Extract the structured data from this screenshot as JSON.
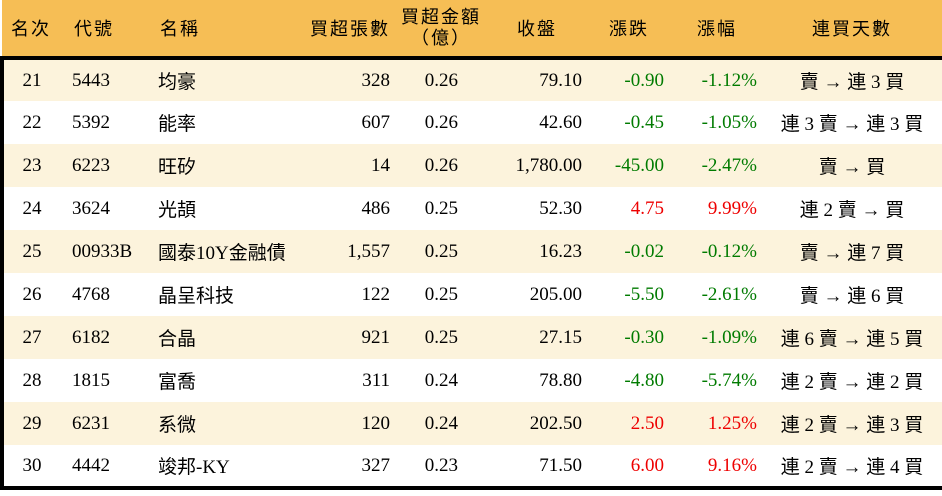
{
  "chart_data": {
    "type": "table",
    "title": "",
    "columns": [
      {
        "key": "rank",
        "label": "名次"
      },
      {
        "key": "code",
        "label": "代號"
      },
      {
        "key": "name",
        "label": "名稱"
      },
      {
        "key": "volume",
        "label": "買超張數"
      },
      {
        "key": "amount",
        "label": "買超金額",
        "sublabel": "（億）"
      },
      {
        "key": "close",
        "label": "收盤"
      },
      {
        "key": "change",
        "label": "漲跌"
      },
      {
        "key": "change_pct",
        "label": "漲幅"
      },
      {
        "key": "streak",
        "label": "連買天數"
      }
    ],
    "rows": [
      {
        "rank": "21",
        "code": "5443",
        "name": "均豪",
        "volume": "328",
        "amount": "0.26",
        "close": "79.10",
        "change": "-0.90",
        "change_pct": "-1.12%",
        "direction": "down",
        "streak": "賣 → 連 3 買"
      },
      {
        "rank": "22",
        "code": "5392",
        "name": "能率",
        "volume": "607",
        "amount": "0.26",
        "close": "42.60",
        "change": "-0.45",
        "change_pct": "-1.05%",
        "direction": "down",
        "streak": "連 3 賣 → 連 3 買"
      },
      {
        "rank": "23",
        "code": "6223",
        "name": "旺矽",
        "volume": "14",
        "amount": "0.26",
        "close": "1,780.00",
        "change": "-45.00",
        "change_pct": "-2.47%",
        "direction": "down",
        "streak": "賣 → 買"
      },
      {
        "rank": "24",
        "code": "3624",
        "name": "光頡",
        "volume": "486",
        "amount": "0.25",
        "close": "52.30",
        "change": "4.75",
        "change_pct": "9.99%",
        "direction": "up",
        "streak": "連 2 賣 → 買"
      },
      {
        "rank": "25",
        "code": "00933B",
        "name": "國泰10Y金融債",
        "volume": "1,557",
        "amount": "0.25",
        "close": "16.23",
        "change": "-0.02",
        "change_pct": "-0.12%",
        "direction": "down",
        "streak": "賣 → 連 7 買"
      },
      {
        "rank": "26",
        "code": "4768",
        "name": "晶呈科技",
        "volume": "122",
        "amount": "0.25",
        "close": "205.00",
        "change": "-5.50",
        "change_pct": "-2.61%",
        "direction": "down",
        "streak": "賣 → 連 6 買"
      },
      {
        "rank": "27",
        "code": "6182",
        "name": "合晶",
        "volume": "921",
        "amount": "0.25",
        "close": "27.15",
        "change": "-0.30",
        "change_pct": "-1.09%",
        "direction": "down",
        "streak": "連 6 賣 → 連 5 買"
      },
      {
        "rank": "28",
        "code": "1815",
        "name": "富喬",
        "volume": "311",
        "amount": "0.24",
        "close": "78.80",
        "change": "-4.80",
        "change_pct": "-5.74%",
        "direction": "down",
        "streak": "連 2 賣 → 連 2 買"
      },
      {
        "rank": "29",
        "code": "6231",
        "name": "系微",
        "volume": "120",
        "amount": "0.24",
        "close": "202.50",
        "change": "2.50",
        "change_pct": "1.25%",
        "direction": "up",
        "streak": "連 2 賣 → 連 3 買"
      },
      {
        "rank": "30",
        "code": "4442",
        "name": "竣邦-KY",
        "volume": "327",
        "amount": "0.23",
        "close": "71.50",
        "change": "6.00",
        "change_pct": "9.16%",
        "direction": "up",
        "streak": "連 2 賣 → 連 4 買"
      }
    ]
  },
  "colors": {
    "header_bg": "#f6be55",
    "alt_row_bg": "#fcf3dc",
    "row_bg": "#ffffff",
    "up_red": "#ee0000",
    "down_green": "#007b00",
    "border": "#000000",
    "text": "#000000"
  }
}
